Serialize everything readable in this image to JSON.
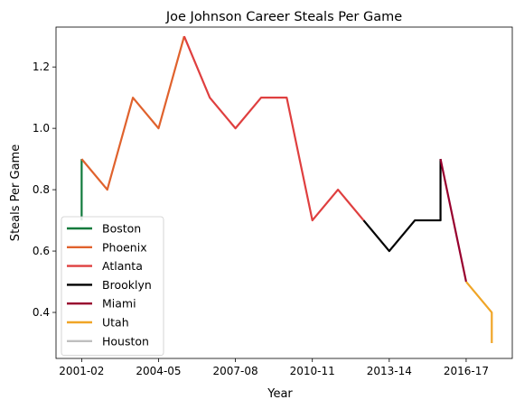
{
  "chart_data": {
    "type": "line",
    "title": "Joe Johnson  Career Steals Per Game",
    "xlabel": "Year",
    "ylabel": "Steals Per Game",
    "x_ticks": [
      {
        "label": "2001-02",
        "x": 0
      },
      {
        "label": "2004-05",
        "x": 3
      },
      {
        "label": "2007-08",
        "x": 6
      },
      {
        "label": "2010-11",
        "x": 9
      },
      {
        "label": "2013-14",
        "x": 12
      },
      {
        "label": "2016-17",
        "x": 15
      }
    ],
    "y_ticks": [
      0.4,
      0.6,
      0.8,
      1.0,
      1.2
    ],
    "xlim": [
      -1,
      16.8
    ],
    "ylim": [
      0.25,
      1.33
    ],
    "legend_position": "lower-left",
    "series": [
      {
        "name": "Boston",
        "color": "#107a3c",
        "points": [
          [
            0,
            0.7
          ],
          [
            0,
            0.9
          ]
        ]
      },
      {
        "name": "Phoenix",
        "color": "#e0622d",
        "points": [
          [
            0,
            0.9
          ],
          [
            1,
            0.8
          ],
          [
            2,
            1.1
          ],
          [
            3,
            1.0
          ],
          [
            4,
            1.3
          ]
        ]
      },
      {
        "name": "Atlanta",
        "color": "#df3f3f",
        "points": [
          [
            4,
            1.3
          ],
          [
            5,
            1.1
          ],
          [
            6,
            1.0
          ],
          [
            7,
            1.1
          ],
          [
            8,
            1.1
          ],
          [
            9,
            0.7
          ],
          [
            10,
            0.8
          ],
          [
            11,
            0.7
          ]
        ]
      },
      {
        "name": "Brooklyn",
        "color": "#000000",
        "points": [
          [
            11,
            0.7
          ],
          [
            12,
            0.6
          ],
          [
            13,
            0.7
          ],
          [
            14,
            0.7
          ],
          [
            14,
            0.9
          ]
        ]
      },
      {
        "name": "Miami",
        "color": "#98002e",
        "points": [
          [
            14,
            0.9
          ],
          [
            15,
            0.5
          ]
        ]
      },
      {
        "name": "Utah",
        "color": "#f0a526",
        "points": [
          [
            15,
            0.5
          ],
          [
            16,
            0.4
          ],
          [
            16,
            0.3
          ]
        ]
      },
      {
        "name": "Houston",
        "color": "#bfbfbf",
        "points": []
      }
    ]
  }
}
